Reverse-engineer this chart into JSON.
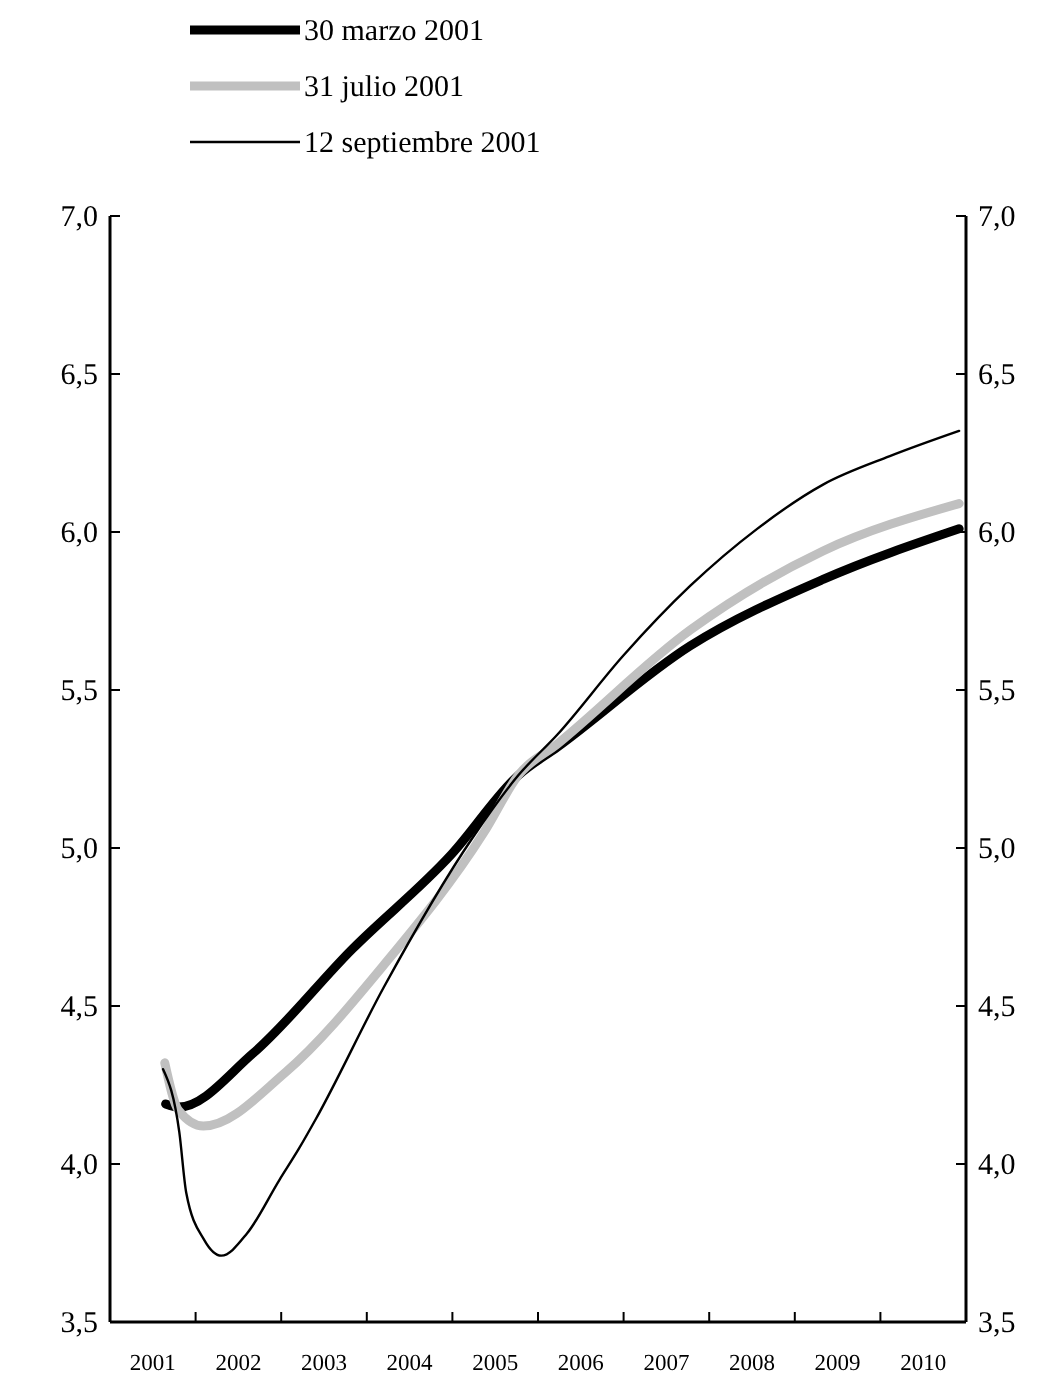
{
  "chart_data": {
    "type": "line",
    "legend": "top left",
    "marker": "none",
    "line_style": "solid",
    "xlim": [
      2001,
      2011
    ],
    "xticks": [
      {
        "value": 2001.5,
        "label": "2001"
      },
      {
        "value": 2002,
        "label": null
      },
      {
        "value": 2002.5,
        "label": "2002"
      },
      {
        "value": 2003,
        "label": null
      },
      {
        "value": 2003.5,
        "label": "2003"
      },
      {
        "value": 2004,
        "label": null
      },
      {
        "value": 2004.5,
        "label": "2004"
      },
      {
        "value": 2005,
        "label": null
      },
      {
        "value": 2005.5,
        "label": "2005"
      },
      {
        "value": 2006,
        "label": null
      },
      {
        "value": 2006.5,
        "label": "2006"
      },
      {
        "value": 2007,
        "label": null
      },
      {
        "value": 2007.5,
        "label": "2007"
      },
      {
        "value": 2008,
        "label": null
      },
      {
        "value": 2008.5,
        "label": "2008"
      },
      {
        "value": 2009,
        "label": null
      },
      {
        "value": 2009.5,
        "label": "2009"
      },
      {
        "value": 2010,
        "label": null
      },
      {
        "value": 2010.5,
        "label": "2010"
      }
    ],
    "ylim": [
      3.5,
      7.0
    ],
    "yticks": [
      {
        "value": 3.5,
        "label": "3,5"
      },
      {
        "value": 4.0,
        "label": "4,0"
      },
      {
        "value": 4.5,
        "label": "4,5"
      },
      {
        "value": 5.0,
        "label": "5,0"
      },
      {
        "value": 5.5,
        "label": "5,5"
      },
      {
        "value": 6.0,
        "label": "6,0"
      },
      {
        "value": 6.5,
        "label": "6,5"
      },
      {
        "value": 7.0,
        "label": "7,0"
      }
    ],
    "y2lim": [
      3.5,
      7.0
    ],
    "y2ticks": [
      {
        "value": 3.5,
        "label": "3,5"
      },
      {
        "value": 4.0,
        "label": "4,0"
      },
      {
        "value": 4.5,
        "label": "4,5"
      },
      {
        "value": 5.0,
        "label": "5,0"
      },
      {
        "value": 5.5,
        "label": "5,5"
      },
      {
        "value": 6.0,
        "label": "6,0"
      },
      {
        "value": 6.5,
        "label": "6,5"
      },
      {
        "value": 7.0,
        "label": "7,0"
      }
    ],
    "grid": false,
    "series": [
      {
        "name": "30 marzo 2001",
        "color": "#000000",
        "x": [
          2001.65,
          2001.8,
          2002.67,
          2003.83,
          2004.99,
          2005.77,
          2006.23,
          2007.78,
          2009.33,
          2010.92
        ],
        "values": [
          4.19,
          4.18,
          4.35,
          4.68,
          4.98,
          5.23,
          5.32,
          5.64,
          5.85,
          6.01
        ]
      },
      {
        "name": "31 julio 2001",
        "color": "#c0c0c0",
        "x": [
          2001.64,
          2001.8,
          2002.09,
          2003.05,
          2004.2,
          2005.37,
          2005.77,
          2006.23,
          2007.78,
          2009.33,
          2010.92
        ],
        "values": [
          4.32,
          4.17,
          4.12,
          4.29,
          4.63,
          5.05,
          5.23,
          5.33,
          5.69,
          5.94,
          6.09
        ]
      },
      {
        "name": "12 septiembre 2001",
        "color": "#000000",
        "x": [
          2001.62,
          2001.81,
          2001.89,
          2002.1,
          2002.3,
          2002.6,
          2002.98,
          2003.21,
          2003.4,
          2004.2,
          2005.23,
          2005.77,
          2006.23,
          2007.0,
          2007.78,
          2008.56,
          2009.33,
          2010.11,
          2010.92
        ],
        "values": [
          4.3,
          4.1,
          3.91,
          3.76,
          3.71,
          3.78,
          3.95,
          4.05,
          4.14,
          4.56,
          5.03,
          5.23,
          5.36,
          5.61,
          5.83,
          6.01,
          6.15,
          6.24,
          6.32
        ]
      }
    ]
  }
}
